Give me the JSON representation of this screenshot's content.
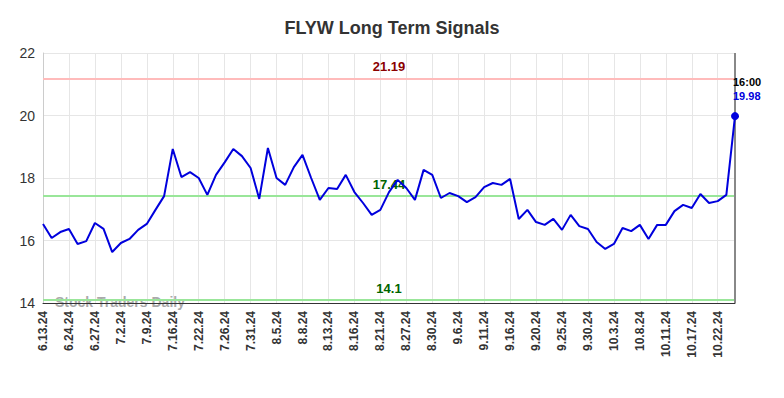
{
  "chart_data": {
    "type": "line",
    "title": "FLYW Long Term Signals",
    "categories": [
      "6.13.24",
      null,
      null,
      "6.24.24",
      null,
      null,
      "6.27.24",
      null,
      null,
      "7.2.24",
      null,
      null,
      "7.9.24",
      null,
      null,
      "7.16.24",
      null,
      null,
      "7.22.24",
      null,
      null,
      "7.26.24",
      null,
      null,
      "7.31.24",
      null,
      null,
      "8.5.24",
      null,
      null,
      "8.8.24",
      null,
      null,
      "8.13.24",
      null,
      null,
      "8.16.24",
      null,
      null,
      "8.21.24",
      null,
      null,
      "8.27.24",
      null,
      null,
      "8.30.24",
      null,
      null,
      "9.6.24",
      null,
      null,
      "9.11.24",
      null,
      null,
      "9.16.24",
      null,
      null,
      "9.20.24",
      null,
      null,
      "9.25.24",
      null,
      null,
      "9.30.24",
      null,
      null,
      "10.3.24",
      null,
      null,
      "10.8.24",
      null,
      null,
      "10.11.24",
      null,
      null,
      "10.17.24",
      null,
      null,
      "10.22.24",
      null,
      null
    ],
    "values": [
      16.53,
      16.08,
      16.27,
      16.37,
      15.89,
      15.98,
      16.56,
      16.37,
      15.63,
      15.92,
      16.05,
      16.34,
      16.53,
      16.98,
      17.42,
      18.93,
      18.03,
      18.19,
      18.0,
      17.46,
      18.1,
      18.5,
      18.93,
      18.7,
      18.32,
      17.33,
      18.96,
      18.0,
      17.78,
      18.35,
      18.74,
      18.0,
      17.3,
      17.68,
      17.65,
      18.1,
      17.55,
      17.2,
      16.82,
      16.98,
      17.55,
      17.94,
      17.68,
      17.3,
      18.26,
      18.1,
      17.36,
      17.52,
      17.42,
      17.23,
      17.39,
      17.71,
      17.84,
      17.78,
      17.97,
      16.69,
      16.98,
      16.59,
      16.5,
      16.69,
      16.34,
      16.82,
      16.46,
      16.37,
      15.95,
      15.73,
      15.89,
      16.4,
      16.3,
      16.5,
      16.05,
      16.5,
      16.5,
      16.94,
      17.14,
      17.04,
      17.49,
      17.2,
      17.26,
      17.46,
      19.98
    ],
    "color": "#0000dd",
    "ylim": [
      14,
      22
    ],
    "yticks": [
      14,
      16,
      18,
      20,
      22
    ],
    "grid": true,
    "reference_lines": [
      {
        "value": 21.19,
        "color": "#ffbbbb",
        "label_color": "#8b0000"
      },
      {
        "value": 17.44,
        "color": "#99e699",
        "label_color": "#006400"
      },
      {
        "value": 14.1,
        "color": "#99e699",
        "label_color": "#006400"
      }
    ],
    "end_label": "16:00",
    "watermark": "Stock Traders Daily"
  }
}
